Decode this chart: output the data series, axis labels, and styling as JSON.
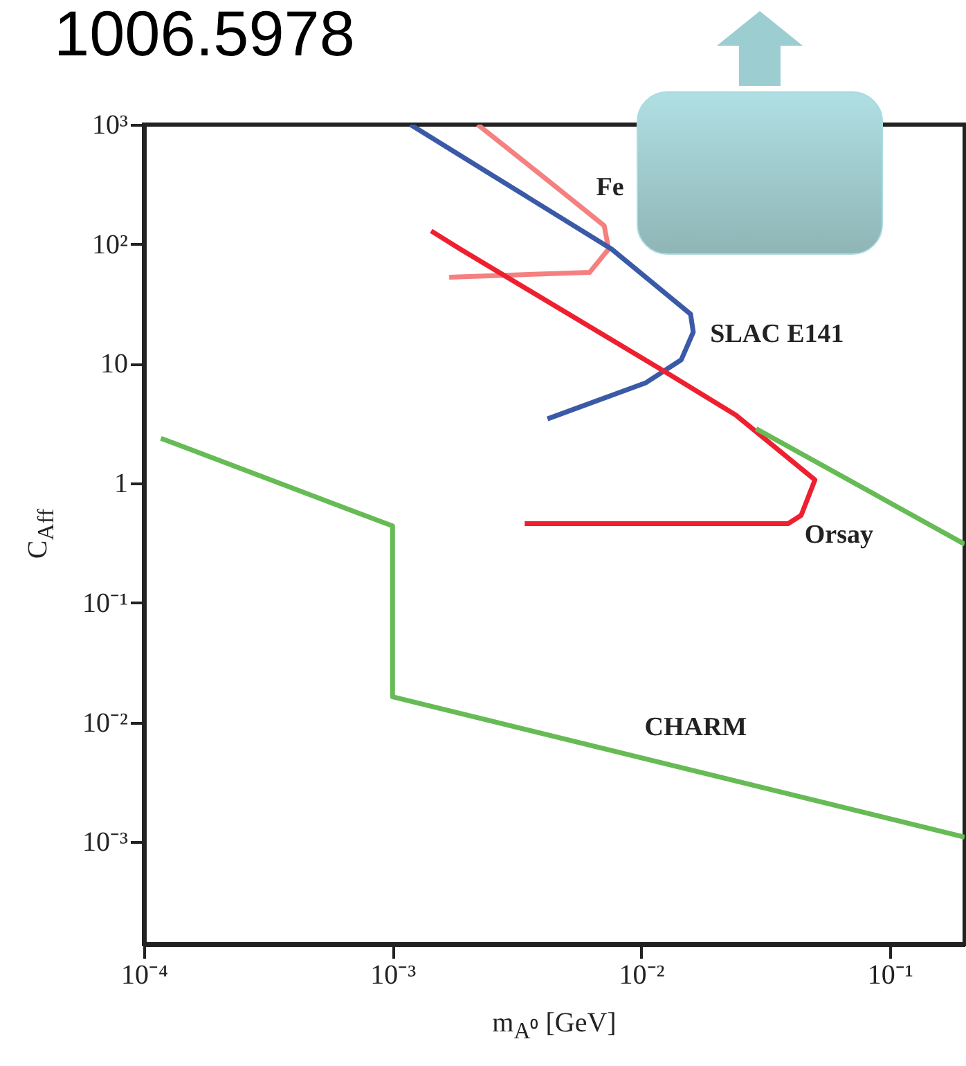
{
  "chart_data": {
    "type": "line",
    "title": "1006.5978",
    "xlabel": "m$_{A⁰}$ [GeV]",
    "ylabel": "C$_{Aff}$",
    "log": "xy",
    "xlim": [
      0.0001,
      0.2
    ],
    "ylim": [
      0.00014,
      1000
    ],
    "xticks": [
      {
        "value": 0.0001,
        "label": "10⁻⁴"
      },
      {
        "value": 0.001,
        "label": "10⁻³"
      },
      {
        "value": 0.01,
        "label": "10⁻²"
      },
      {
        "value": 0.1,
        "label": "10⁻¹"
      }
    ],
    "yticks": [
      {
        "value": 0.001,
        "label": "10⁻³"
      },
      {
        "value": 0.01,
        "label": "10⁻²"
      },
      {
        "value": 0.1,
        "label": "10⁻¹"
      },
      1,
      10,
      {
        "value": 100,
        "label": "10²"
      },
      {
        "value": 1000,
        "label": "10³"
      }
    ],
    "series": [
      {
        "name": "Fe",
        "color": "#f58080",
        "x": [
          0.0022,
          0.0044,
          0.0071,
          0.0074,
          0.0062,
          0.00169
        ],
        "values": [
          1000,
          318,
          143,
          91,
          58,
          53
        ]
      },
      {
        "name": "SLAC E141",
        "color": "#3a5aa8",
        "x": [
          0.00118,
          0.0076,
          0.0158,
          0.0162,
          0.0145,
          0.0104,
          0.0042
        ],
        "values": [
          1000,
          91,
          26,
          18.4,
          10.8,
          6.9,
          3.46
        ]
      },
      {
        "name": "Orsay",
        "color": "#ee2030",
        "x": [
          0.00143,
          0.00187,
          0.0128,
          0.024,
          0.05,
          0.044,
          0.039,
          0.0034
        ],
        "values": [
          129,
          91,
          8.3,
          3.73,
          1.07,
          0.54,
          0.46,
          0.46
        ]
      },
      {
        "name": "CHARM",
        "color": "#66bb55",
        "x": [
          0.000117,
          0.001,
          0.001,
          0.2,
          null,
          0.029,
          0.2
        ],
        "values": [
          2.38,
          0.44,
          0.0164,
          0.0011,
          null,
          2.86,
          0.31
        ]
      }
    ]
  }
}
